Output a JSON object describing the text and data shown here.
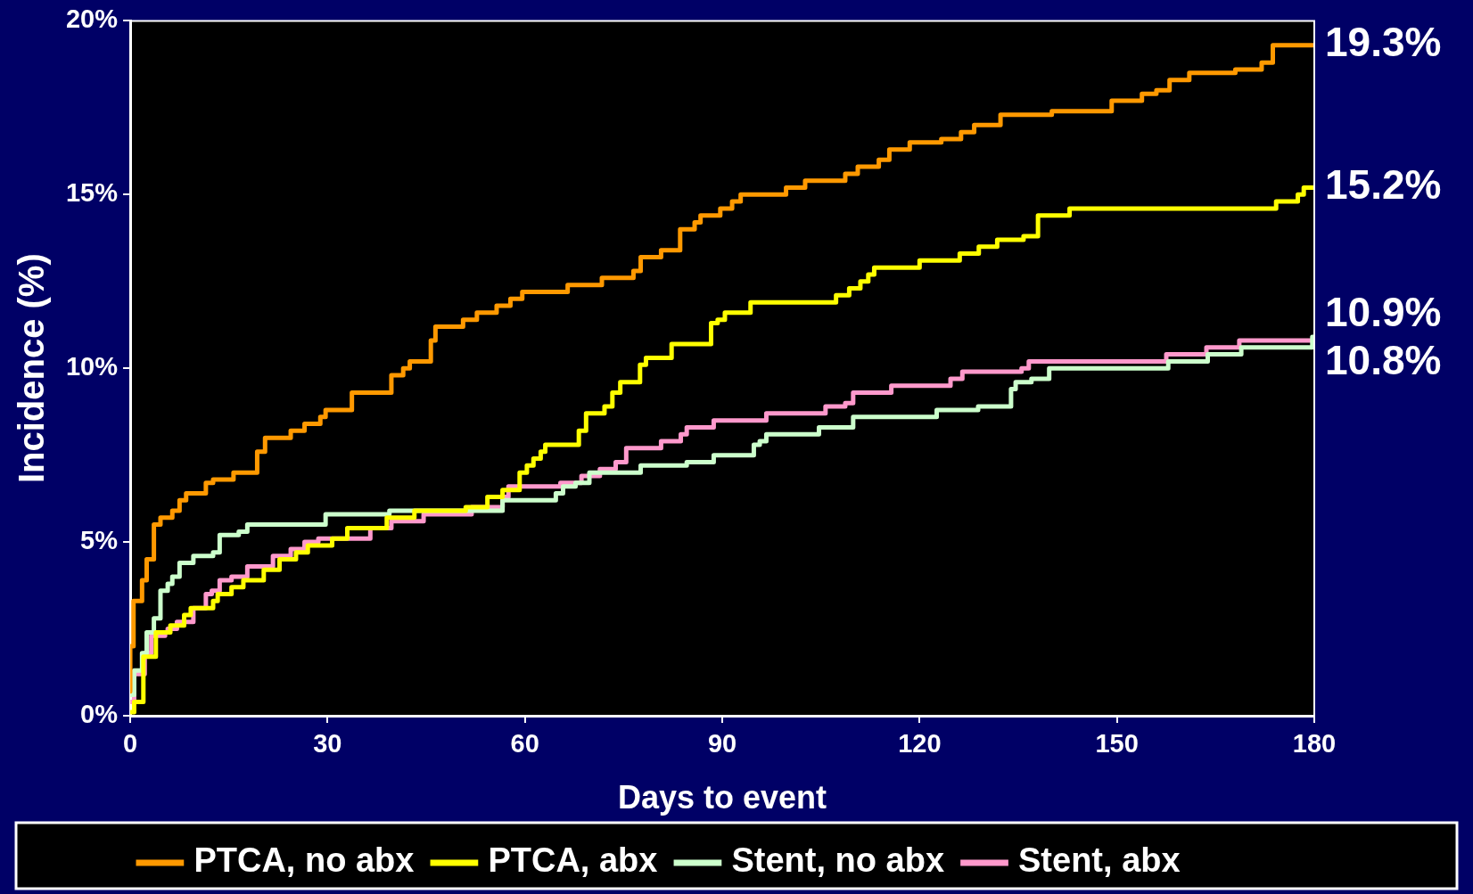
{
  "chart_data": {
    "type": "step",
    "xlabel": "Days to event",
    "ylabel": "Incidence (%)",
    "xlim": [
      0,
      180
    ],
    "xticks": [
      0,
      30,
      60,
      90,
      120,
      150,
      180
    ],
    "ylim": [
      0,
      20
    ],
    "yticks": [
      {
        "value": 0,
        "label": "0%"
      },
      {
        "value": 5,
        "label": "5%"
      },
      {
        "value": 10,
        "label": "10%"
      },
      {
        "value": 15,
        "label": "15%"
      },
      {
        "value": 20,
        "label": "20%"
      }
    ],
    "legend": "bottom",
    "series": [
      {
        "name": "PTCA, no abx",
        "color": "#ff9900",
        "x": [
          0,
          0,
          0.5,
          1.8,
          2.5,
          3.6,
          4.6,
          6.4,
          7.5,
          8.5,
          11.5,
          12.6,
          15.7,
          19.3,
          20.5,
          24.4,
          26.5,
          28.9,
          29.7,
          33.7,
          39.7,
          41.5,
          42.5,
          45.7,
          46.4,
          50.6,
          52.7,
          55.7,
          57.8,
          59.6,
          66.5,
          71.7,
          76.5,
          77.6,
          80.7,
          83.6,
          85.8,
          86.7,
          89.7,
          91.5,
          92.8,
          99.7,
          102.6,
          108.7,
          110.6,
          113.8,
          115.4,
          118.5,
          123.3,
          126.3,
          128.3,
          132.3,
          140.1,
          149.2,
          153.8,
          156,
          158,
          161,
          168,
          172,
          173.7,
          180
        ],
        "values": [
          0.7,
          2.0,
          3.3,
          3.9,
          4.5,
          5.5,
          5.7,
          5.9,
          6.2,
          6.4,
          6.7,
          6.8,
          7.0,
          7.6,
          8.0,
          8.2,
          8.4,
          8.6,
          8.8,
          9.3,
          9.8,
          10.0,
          10.2,
          10.8,
          11.2,
          11.4,
          11.6,
          11.8,
          12.0,
          12.2,
          12.4,
          12.6,
          12.8,
          13.2,
          13.4,
          14.0,
          14.2,
          14.4,
          14.6,
          14.8,
          15.0,
          15.2,
          15.4,
          15.6,
          15.8,
          16.0,
          16.3,
          16.5,
          16.6,
          16.8,
          17.0,
          17.3,
          17.4,
          17.7,
          17.9,
          18.0,
          18.3,
          18.5,
          18.6,
          18.8,
          19.3,
          19.3
        ],
        "value_labels": [
          null,
          null,
          null,
          null,
          null,
          null,
          null,
          null,
          null,
          null,
          null,
          null,
          null,
          null,
          null,
          null,
          null,
          null,
          null,
          null,
          null,
          null,
          null,
          null,
          null,
          null,
          null,
          null,
          null,
          null,
          null,
          null,
          null,
          null,
          null,
          null,
          null,
          null,
          null,
          null,
          null,
          null,
          null,
          null,
          null,
          null,
          null,
          null,
          null,
          null,
          null,
          null,
          null,
          null,
          null,
          null,
          null,
          null,
          null,
          null,
          null,
          "19.3%"
        ]
      },
      {
        "name": "PTCA, abx",
        "color": "#ffff00",
        "x": [
          0,
          0.6,
          2.0,
          3.9,
          6.1,
          8.2,
          9.2,
          12.6,
          13.3,
          15.4,
          17.2,
          20.3,
          22.7,
          25.2,
          27,
          30.7,
          33,
          39,
          43.2,
          51,
          54.3,
          56.6,
          59.2,
          60.3,
          61.3,
          62.4,
          63.1,
          68.2,
          69.3,
          72.1,
          73.3,
          74.5,
          77.5,
          78.4,
          82.3,
          88.3,
          89.3,
          90.4,
          94.3,
          107.3,
          109.3,
          111,
          112.2,
          113.1,
          120,
          126.1,
          129,
          131.8,
          135.8,
          138,
          142.8,
          174.2,
          177.5,
          178.4,
          180
        ],
        "values": [
          0.1,
          0.4,
          1.7,
          2.4,
          2.6,
          2.9,
          3.1,
          3.3,
          3.5,
          3.7,
          3.9,
          4.2,
          4.5,
          4.7,
          4.9,
          5.1,
          5.4,
          5.7,
          5.9,
          6.0,
          6.3,
          6.5,
          7.0,
          7.2,
          7.4,
          7.6,
          7.8,
          8.2,
          8.7,
          8.9,
          9.3,
          9.6,
          10.1,
          10.3,
          10.7,
          11.3,
          11.4,
          11.6,
          11.9,
          12.1,
          12.3,
          12.5,
          12.7,
          12.9,
          13.1,
          13.3,
          13.5,
          13.7,
          13.8,
          14.4,
          14.6,
          14.8,
          15.0,
          15.2,
          15.2
        ],
        "value_labels": [
          null,
          null,
          null,
          null,
          null,
          null,
          null,
          null,
          null,
          null,
          null,
          null,
          null,
          null,
          null,
          null,
          null,
          null,
          null,
          null,
          null,
          null,
          null,
          null,
          null,
          null,
          null,
          null,
          null,
          null,
          null,
          null,
          null,
          null,
          null,
          null,
          null,
          null,
          null,
          null,
          null,
          null,
          null,
          null,
          null,
          null,
          null,
          null,
          null,
          null,
          null,
          null,
          null,
          null,
          "15.2%"
        ]
      },
      {
        "name": "Stent, no abx",
        "color": "#ccffcc",
        "x": [
          0,
          0.6,
          1.8,
          2.5,
          3.6,
          4.6,
          5.7,
          6.4,
          7.5,
          9.6,
          12.6,
          13.6,
          16.5,
          17.8,
          29.7,
          39.4,
          56.6,
          64.7,
          65.8,
          67.7,
          69.8,
          77.6,
          84.6,
          88.7,
          94.8,
          95.7,
          96.7,
          104.7,
          109.9,
          122.6,
          128.9,
          133.9,
          134.6,
          137,
          139.7,
          157.8,
          163.8,
          168.9,
          179.7,
          180
        ],
        "values": [
          0.6,
          1.3,
          1.8,
          2.4,
          2.8,
          3.6,
          3.8,
          4.0,
          4.4,
          4.6,
          4.7,
          5.2,
          5.3,
          5.5,
          5.8,
          5.9,
          6.2,
          6.4,
          6.6,
          6.7,
          7.0,
          7.2,
          7.3,
          7.5,
          7.8,
          7.9,
          8.1,
          8.3,
          8.6,
          8.8,
          8.9,
          9.4,
          9.6,
          9.7,
          10.0,
          10.2,
          10.4,
          10.6,
          10.9,
          10.9
        ],
        "value_labels": [
          null,
          null,
          null,
          null,
          null,
          null,
          null,
          null,
          null,
          null,
          null,
          null,
          null,
          null,
          null,
          null,
          null,
          null,
          null,
          null,
          null,
          null,
          null,
          null,
          null,
          null,
          null,
          null,
          null,
          null,
          null,
          null,
          null,
          null,
          null,
          null,
          null,
          null,
          null,
          "10.9%"
        ]
      },
      {
        "name": "Stent, abx",
        "color": "#ff99cc",
        "x": [
          0,
          0.6,
          2.2,
          3.2,
          5.3,
          5.7,
          7.1,
          9.6,
          11.5,
          12.4,
          13.6,
          15.4,
          17.8,
          21.7,
          24.4,
          26.5,
          28.6,
          36.5,
          39.7,
          44.6,
          51.9,
          56.6,
          57.5,
          65.4,
          68.6,
          71.4,
          73.8,
          75.4,
          80.7,
          83.7,
          84.6,
          88.7,
          96.7,
          105.7,
          108.7,
          109.9,
          115.7,
          124.7,
          126.5,
          135.5,
          136.6,
          157.5,
          163.6,
          168.6,
          180
        ],
        "values": [
          0.4,
          1.2,
          1.8,
          2.3,
          2.4,
          2.5,
          2.7,
          3.1,
          3.5,
          3.6,
          3.9,
          4.0,
          4.3,
          4.6,
          4.8,
          5.0,
          5.1,
          5.4,
          5.6,
          5.8,
          6.0,
          6.3,
          6.6,
          6.7,
          6.9,
          7.1,
          7.3,
          7.7,
          7.9,
          8.1,
          8.3,
          8.5,
          8.7,
          8.9,
          9.0,
          9.3,
          9.5,
          9.7,
          9.9,
          10.0,
          10.2,
          10.4,
          10.6,
          10.8,
          10.8
        ],
        "value_labels": [
          null,
          null,
          null,
          null,
          null,
          null,
          null,
          null,
          null,
          null,
          null,
          null,
          null,
          null,
          null,
          null,
          null,
          null,
          null,
          null,
          null,
          null,
          null,
          null,
          null,
          null,
          null,
          null,
          null,
          null,
          null,
          null,
          null,
          null,
          null,
          null,
          null,
          null,
          null,
          null,
          null,
          null,
          null,
          null,
          "10.8%"
        ]
      }
    ]
  }
}
